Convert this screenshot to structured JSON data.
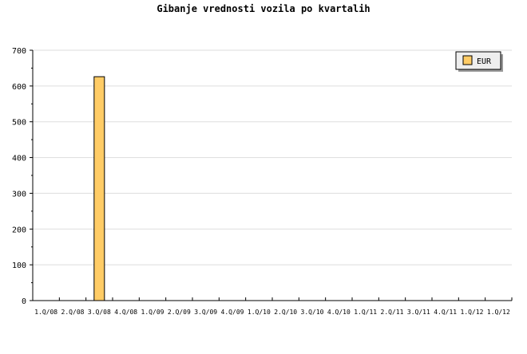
{
  "chart_data": {
    "type": "bar",
    "title": "Gibanje vrednosti vozila po kvartalih",
    "categories": [
      "1.Q/08",
      "2.Q/08",
      "3.Q/08",
      "4.Q/08",
      "1.Q/09",
      "2.Q/09",
      "3.Q/09",
      "4.Q/09",
      "1.Q/10",
      "2.Q/10",
      "3.Q/10",
      "4.Q/10",
      "1.Q/11",
      "2.Q/11",
      "3.Q/11",
      "4.Q/11",
      "1.Q/12",
      "1.Q/12"
    ],
    "series": [
      {
        "name": "EUR",
        "values": [
          0,
          0,
          626,
          0,
          0,
          0,
          0,
          0,
          0,
          0,
          0,
          0,
          0,
          0,
          0,
          0,
          0,
          0
        ],
        "color": "#ffcc66"
      }
    ],
    "ylim": [
      0,
      700
    ],
    "yticks": [
      0,
      100,
      200,
      300,
      400,
      500,
      600,
      700
    ],
    "grid": true,
    "legend": "top-right"
  }
}
